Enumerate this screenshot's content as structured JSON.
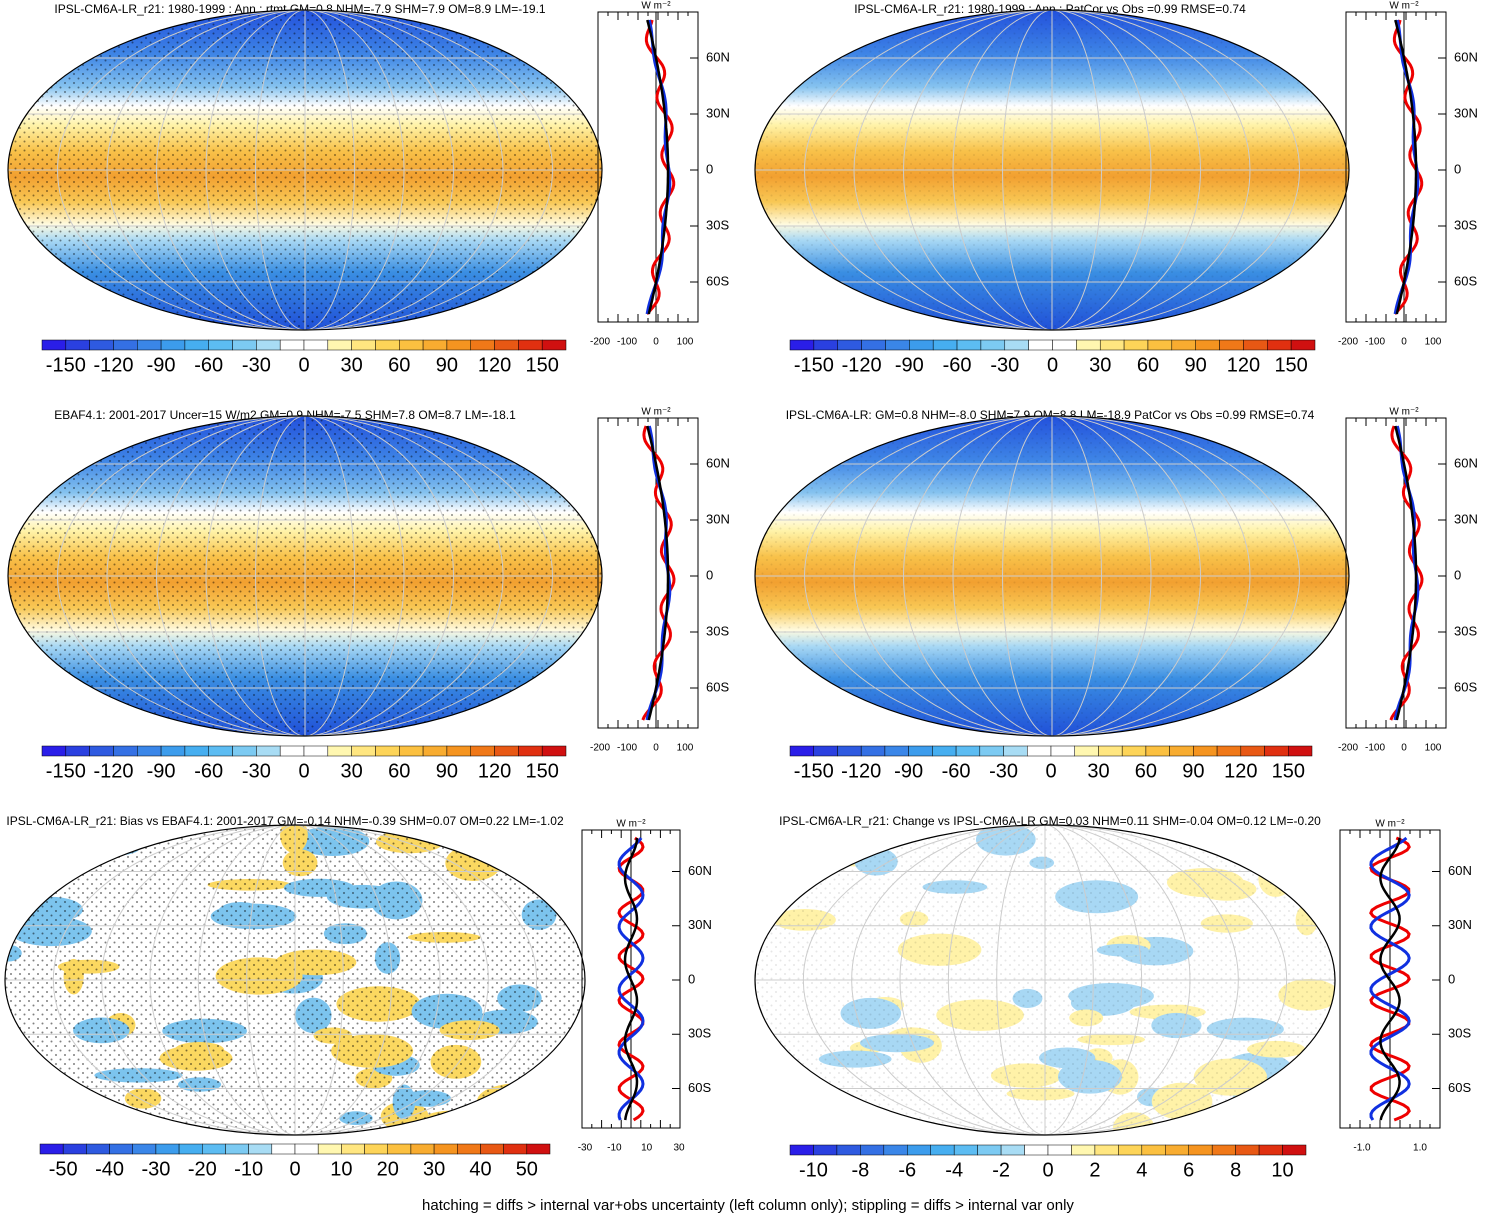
{
  "panels": [
    {
      "title": "IPSL-CM6A-LR_r21: 1980-1999 : Ann : rtmt GM=0.8 NHM=-7.9 SHM=7.9 OM=8.9 LM=-19.1",
      "colorbar_labels": [
        "-150",
        "-120",
        "-90",
        "-60",
        "-30",
        "0",
        "30",
        "60",
        "90",
        "120",
        "150"
      ],
      "profile": {
        "units": "W m⁻²",
        "x_labels": [
          "-200",
          "-100",
          "0",
          "100"
        ],
        "y_labels": [
          "60N",
          "30N",
          "0",
          "30S",
          "60S"
        ]
      }
    },
    {
      "title": "IPSL-CM6A-LR_r21: 1980-1999 : Ann : PatCor vs Obs =0.99 RMSE=0.74",
      "colorbar_labels": [
        "-150",
        "-120",
        "-90",
        "-60",
        "-30",
        "0",
        "30",
        "60",
        "90",
        "120",
        "150"
      ],
      "profile": {
        "units": "W m⁻²",
        "x_labels": [
          "-200",
          "-100",
          "0",
          "100"
        ],
        "y_labels": [
          "60N",
          "30N",
          "0",
          "30S",
          "60S"
        ]
      }
    },
    {
      "title": "EBAF4.1: 2001-2017 Uncer=15 W/m2 GM=0.9 NHM=-7.5 SHM=7.8 OM=8.7 LM=-18.1",
      "colorbar_labels": [
        "-150",
        "-120",
        "-90",
        "-60",
        "-30",
        "0",
        "30",
        "60",
        "90",
        "120",
        "150"
      ],
      "profile": {
        "units": "W m⁻²",
        "x_labels": [
          "-200",
          "-100",
          "0",
          "100"
        ],
        "y_labels": [
          "60N",
          "30N",
          "0",
          "30S",
          "60S"
        ]
      }
    },
    {
      "title": "IPSL-CM6A-LR: GM=0.8 NHM=-8.0 SHM=7.9 OM=8.8 LM=-18.9 PatCor vs Obs =0.99 RMSE=0.74",
      "colorbar_labels": [
        "-150",
        "-120",
        "-90",
        "-60",
        "-30",
        "0",
        "30",
        "60",
        "90",
        "120",
        "150"
      ],
      "profile": {
        "units": "W m⁻²",
        "x_labels": [
          "-200",
          "-100",
          "0",
          "100"
        ],
        "y_labels": [
          "60N",
          "30N",
          "0",
          "30S",
          "60S"
        ]
      }
    },
    {
      "title": "IPSL-CM6A-LR_r21: Bias vs EBAF4.1: 2001-2017 GM=-0.14 NHM=-0.39 SHM=0.07 OM=0.22 LM=-1.02",
      "colorbar_labels": [
        "-50",
        "-40",
        "-30",
        "-20",
        "-10",
        "0",
        "10",
        "20",
        "30",
        "40",
        "50"
      ],
      "profile": {
        "units": "W m⁻²",
        "x_labels": [
          "-30",
          "-10",
          "10",
          "30"
        ],
        "y_labels": [
          "60N",
          "30N",
          "0",
          "30S",
          "60S"
        ]
      }
    },
    {
      "title": "IPSL-CM6A-LR_r21: Change vs IPSL-CM6A-LR GM=0.03 NHM=0.11 SHM=-0.04 OM=0.12 LM=-0.20",
      "colorbar_labels": [
        "-10",
        "-8",
        "-6",
        "-4",
        "-2",
        "0",
        "2",
        "4",
        "6",
        "8",
        "10"
      ],
      "profile": {
        "units": "W m⁻²",
        "x_labels": [
          "-1.0",
          "1.0"
        ],
        "y_labels": [
          "60N",
          "30N",
          "0",
          "30S",
          "60S"
        ]
      }
    }
  ],
  "footnote": "hatching = diffs > internal var+obs uncertainty (left column only); stippling = diffs > internal var only"
}
